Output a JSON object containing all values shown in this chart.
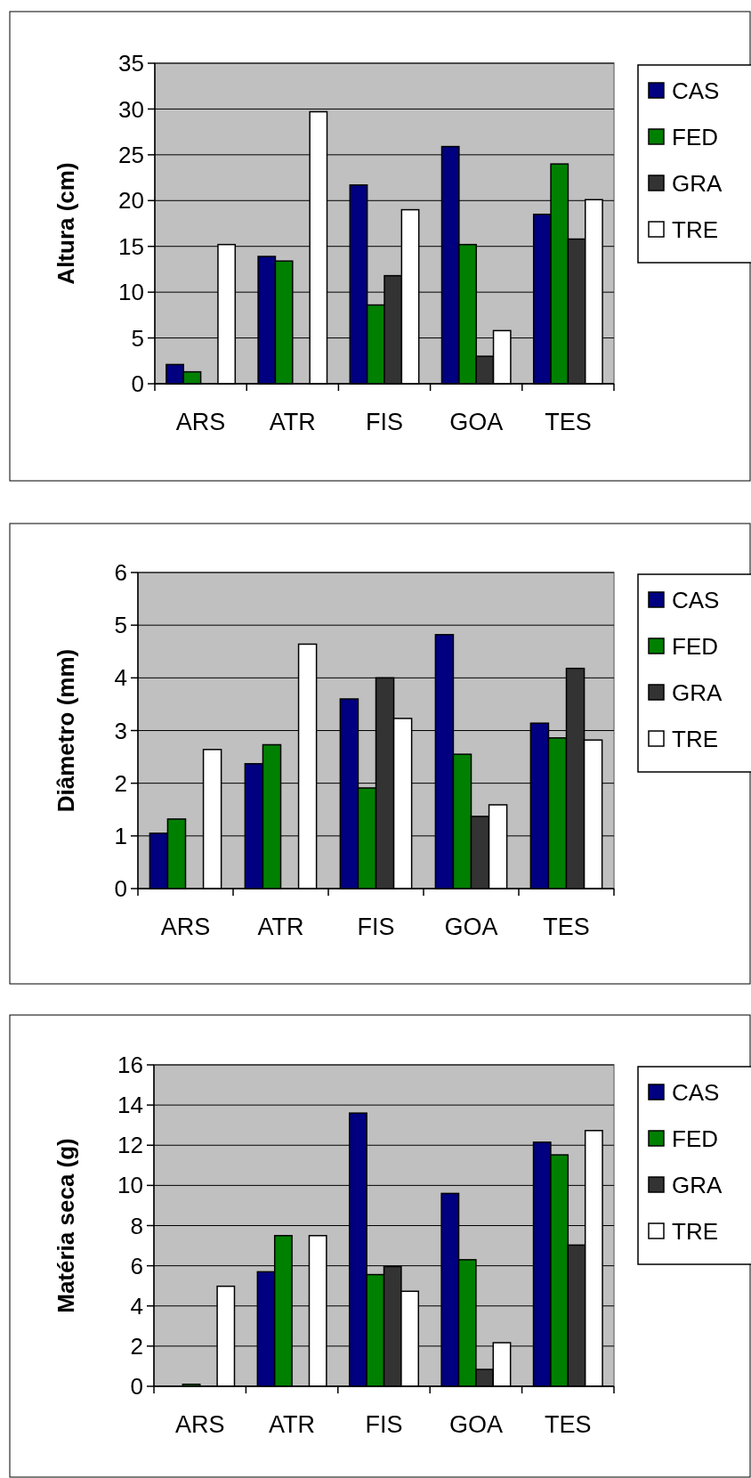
{
  "chart_data": [
    {
      "type": "bar",
      "ylabel": "Altura (cm)",
      "categories": [
        "ARS",
        "ATR",
        "FIS",
        "GOA",
        "TES"
      ],
      "ylim": [
        0,
        35
      ],
      "yticks": [
        0,
        5,
        10,
        15,
        20,
        25,
        30,
        35
      ],
      "grid": "y",
      "legend": "right",
      "series": [
        {
          "name": "CAS",
          "color": "#000080",
          "values": [
            2.1,
            13.9,
            21.7,
            25.9,
            18.5
          ]
        },
        {
          "name": "FED",
          "color": "#008000",
          "values": [
            1.3,
            13.4,
            8.6,
            15.2,
            24.0
          ]
        },
        {
          "name": "GRA",
          "color": "#333333",
          "values": [
            null,
            null,
            11.8,
            3.0,
            15.8
          ]
        },
        {
          "name": "TRE",
          "color": "#ffffff",
          "values": [
            15.2,
            29.7,
            19.0,
            5.8,
            20.1
          ]
        }
      ]
    },
    {
      "type": "bar",
      "ylabel": "Diâmetro (mm)",
      "categories": [
        "ARS",
        "ATR",
        "FIS",
        "GOA",
        "TES"
      ],
      "ylim": [
        0,
        6
      ],
      "yticks": [
        0,
        1,
        2,
        3,
        4,
        5,
        6
      ],
      "grid": "y",
      "legend": "right",
      "series": [
        {
          "name": "CAS",
          "color": "#000080",
          "values": [
            1.05,
            2.37,
            3.6,
            4.82,
            3.14
          ]
        },
        {
          "name": "FED",
          "color": "#008000",
          "values": [
            1.32,
            2.73,
            1.91,
            2.55,
            2.86
          ]
        },
        {
          "name": "GRA",
          "color": "#333333",
          "values": [
            null,
            null,
            4.0,
            1.37,
            4.18
          ]
        },
        {
          "name": "TRE",
          "color": "#ffffff",
          "values": [
            2.64,
            4.64,
            3.23,
            1.59,
            2.82
          ]
        }
      ]
    },
    {
      "type": "bar",
      "ylabel": "Matéria seca (g)",
      "categories": [
        "ARS",
        "ATR",
        "FIS",
        "GOA",
        "TES"
      ],
      "ylim": [
        0,
        16
      ],
      "yticks": [
        0,
        2,
        4,
        6,
        8,
        10,
        12,
        14,
        16
      ],
      "grid": "y",
      "legend": "right",
      "series": [
        {
          "name": "CAS",
          "color": "#000080",
          "values": [
            null,
            5.7,
            13.6,
            9.6,
            12.15
          ]
        },
        {
          "name": "FED",
          "color": "#008000",
          "values": [
            0.1,
            7.5,
            5.56,
            6.3,
            11.52
          ]
        },
        {
          "name": "GRA",
          "color": "#333333",
          "values": [
            null,
            null,
            5.96,
            0.84,
            7.03
          ]
        },
        {
          "name": "TRE",
          "color": "#ffffff",
          "values": [
            4.98,
            7.5,
            4.73,
            2.17,
            12.73
          ]
        }
      ]
    }
  ]
}
